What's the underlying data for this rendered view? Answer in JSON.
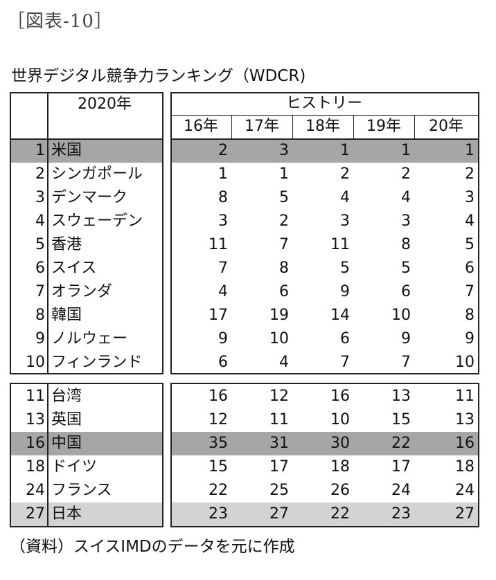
{
  "figure_label": "［図表-10］",
  "table_title": "世界デジタル競争力ランキング（WDCR)",
  "header": {
    "year_col": "2020年",
    "history": "ヒストリー",
    "years": [
      "16年",
      "17年",
      "18年",
      "19年",
      "20年"
    ]
  },
  "top10": [
    {
      "rank": "1",
      "country": "米国",
      "values": [
        "2",
        "3",
        "1",
        "1",
        "1"
      ],
      "highlight": "dark"
    },
    {
      "rank": "2",
      "country": "シンガポール",
      "values": [
        "1",
        "1",
        "2",
        "2",
        "2"
      ],
      "highlight": "none"
    },
    {
      "rank": "3",
      "country": "デンマーク",
      "values": [
        "8",
        "5",
        "4",
        "4",
        "3"
      ],
      "highlight": "none"
    },
    {
      "rank": "4",
      "country": "スウェーデン",
      "values": [
        "3",
        "2",
        "3",
        "3",
        "4"
      ],
      "highlight": "none"
    },
    {
      "rank": "5",
      "country": "香港",
      "values": [
        "11",
        "7",
        "11",
        "8",
        "5"
      ],
      "highlight": "none"
    },
    {
      "rank": "6",
      "country": "スイス",
      "values": [
        "7",
        "8",
        "5",
        "5",
        "6"
      ],
      "highlight": "none"
    },
    {
      "rank": "7",
      "country": "オランダ",
      "values": [
        "4",
        "6",
        "9",
        "6",
        "7"
      ],
      "highlight": "none"
    },
    {
      "rank": "8",
      "country": "韓国",
      "values": [
        "17",
        "19",
        "14",
        "10",
        "8"
      ],
      "highlight": "none"
    },
    {
      "rank": "9",
      "country": "ノルウェー",
      "values": [
        "9",
        "10",
        "6",
        "9",
        "9"
      ],
      "highlight": "none"
    },
    {
      "rank": "10",
      "country": "フィンランド",
      "values": [
        "6",
        "4",
        "7",
        "7",
        "10"
      ],
      "highlight": "none"
    }
  ],
  "others": [
    {
      "rank": "11",
      "country": "台湾",
      "values": [
        "16",
        "12",
        "16",
        "13",
        "11"
      ],
      "highlight": "none"
    },
    {
      "rank": "13",
      "country": "英国",
      "values": [
        "12",
        "11",
        "10",
        "15",
        "13"
      ],
      "highlight": "none"
    },
    {
      "rank": "16",
      "country": "中国",
      "values": [
        "35",
        "31",
        "30",
        "22",
        "16"
      ],
      "highlight": "dark"
    },
    {
      "rank": "18",
      "country": "ドイツ",
      "values": [
        "15",
        "17",
        "18",
        "17",
        "18"
      ],
      "highlight": "none"
    },
    {
      "rank": "24",
      "country": "フランス",
      "values": [
        "22",
        "25",
        "26",
        "24",
        "24"
      ],
      "highlight": "none"
    },
    {
      "rank": "27",
      "country": "日本",
      "values": [
        "23",
        "27",
        "22",
        "23",
        "27"
      ],
      "highlight": "light"
    }
  ],
  "source": "（資料）スイスIMDのデータを元に作成",
  "colors": {
    "highlight_dark": "#a6a6a6",
    "highlight_light": "#d3d3d3",
    "border": "#222222"
  }
}
